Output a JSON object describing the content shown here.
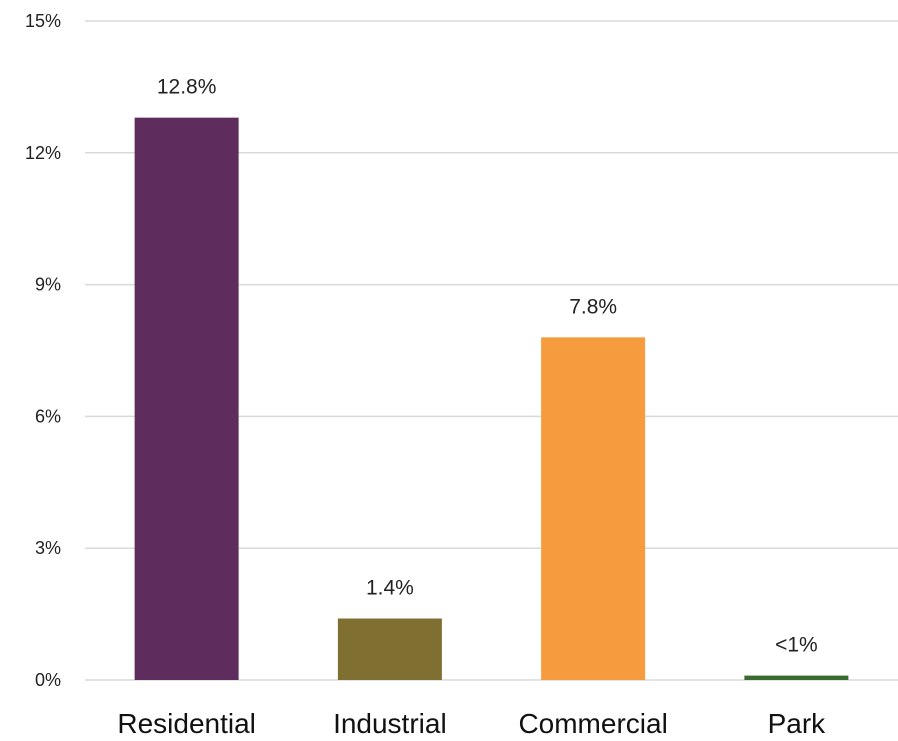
{
  "chart_data": {
    "type": "bar",
    "categories": [
      "Residential",
      "Industrial",
      "Commercial",
      "Park"
    ],
    "values": [
      12.8,
      1.4,
      7.8,
      0.1
    ],
    "data_labels": [
      "12.8%",
      "1.4%",
      "7.8%",
      "<1%"
    ],
    "colors": [
      "#5e2d5e",
      "#7f6f31",
      "#f79b3f",
      "#3a6b2e"
    ],
    "ylim": [
      0,
      15
    ],
    "yticks": [
      0,
      3,
      6,
      9,
      12,
      15
    ],
    "ytick_labels": [
      "0%",
      "3%",
      "6%",
      "9%",
      "12%",
      "15%"
    ],
    "grid": true,
    "title": "",
    "xlabel": "",
    "ylabel": ""
  }
}
